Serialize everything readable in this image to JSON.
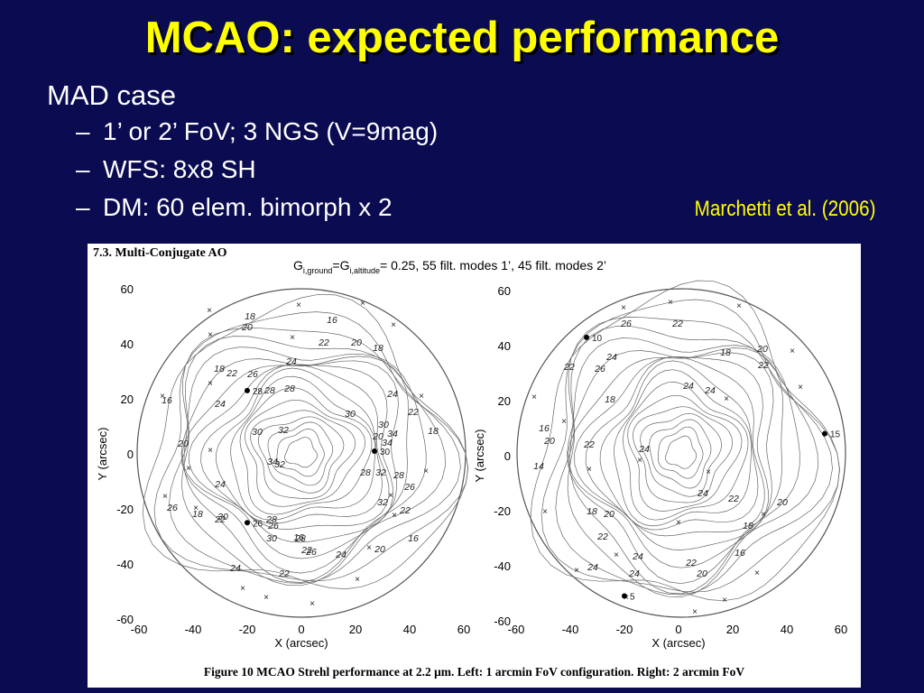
{
  "title": "MCAO: expected performance",
  "bullets": {
    "main": "MAD case",
    "sub": [
      "1’ or 2’ FoV; 3 NGS (V=9mag)",
      "WFS: 8x8 SH",
      "DM: 60 elem. bimorph x 2"
    ]
  },
  "citation": "Marchetti et al. (2006)",
  "figure": {
    "section": "7.3. Multi-Conjugate AO",
    "gain": {
      "g1": "G",
      "sub1": "i,ground",
      "eq": "=G",
      "sub2": "i,altitude",
      "rest": "= 0.25, 55 filt. modes 1’, 45 filt. modes 2’"
    },
    "caption": "Figure 10 MCAO Strehl performance at 2.2 μm. Left: 1 arcmin FoV configuration. Right: 2 arcmin FoV",
    "x_label": "X (arcsec)",
    "y_label": "Y (arcsec)",
    "ticks": [
      "-60",
      "-40",
      "-20",
      "0",
      "20",
      "40",
      "60"
    ],
    "left_plot": {
      "contour_labels": [
        "18",
        "16",
        "20",
        "22",
        "20",
        "18",
        "24",
        "18",
        "22",
        "26",
        "28",
        "28",
        "16",
        "24",
        "30",
        "24",
        "22",
        "30",
        "32",
        "34",
        "30",
        "18",
        "20",
        "20",
        "34",
        "32",
        "34",
        "24",
        "28",
        "32",
        "28",
        "26",
        "30",
        "28",
        "26",
        "16",
        "22",
        "26",
        "32",
        "22",
        "18",
        "22",
        "30",
        "28",
        "26",
        "24",
        "20",
        "16",
        "24",
        "22"
      ],
      "stars": [
        {
          "x": -20,
          "y": 23,
          "label": "28"
        },
        {
          "x": 27,
          "y": 1,
          "label": "30"
        },
        {
          "x": -20,
          "y": -25,
          "label": "26"
        }
      ]
    },
    "right_plot": {
      "contour_labels": [
        "26",
        "22",
        "24",
        "18",
        "20",
        "22",
        "22",
        "26",
        "24",
        "24",
        "18",
        "16",
        "20",
        "22",
        "24",
        "14",
        "24",
        "22",
        "20",
        "18",
        "20",
        "18",
        "22",
        "16",
        "24",
        "22",
        "20",
        "24",
        "24"
      ],
      "stars": [
        {
          "x": -34,
          "y": 43,
          "label": "10"
        },
        {
          "x": 54,
          "y": 8,
          "label": "15"
        },
        {
          "x": -20,
          "y": -51,
          "label": "5"
        }
      ]
    }
  }
}
